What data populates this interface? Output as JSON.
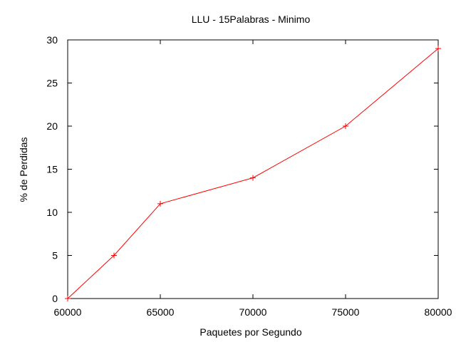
{
  "chart_data": {
    "type": "line",
    "title": "LLU - 15Palabras - Minimo",
    "xlabel": "Paquetes por Segundo",
    "ylabel": "% de Perdidas",
    "xlim": [
      60000,
      80000
    ],
    "ylim": [
      0,
      30
    ],
    "x_ticks": [
      60000,
      65000,
      70000,
      75000,
      80000
    ],
    "y_ticks": [
      0,
      5,
      10,
      15,
      20,
      25,
      30
    ],
    "grid": false,
    "line_color": "#ff0000",
    "marker": "plus",
    "series": [
      {
        "x": [
          60000,
          62500,
          65000,
          70000,
          75000,
          80000
        ],
        "y": [
          0,
          5,
          11,
          14,
          20,
          29
        ]
      }
    ]
  }
}
